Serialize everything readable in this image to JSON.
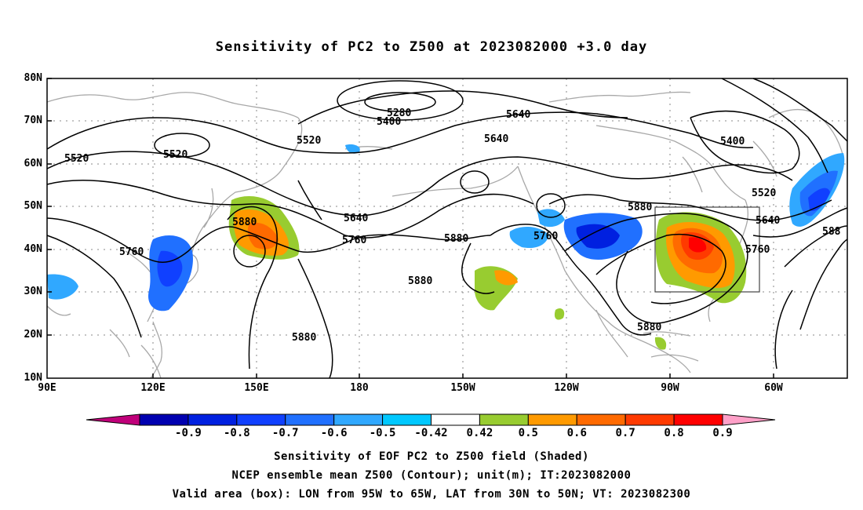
{
  "title": "Sensitivity of PC2 to Z500 at 2023082000 +3.0 day",
  "lat_labels": [
    "80N",
    "70N",
    "60N",
    "50N",
    "40N",
    "30N",
    "20N",
    "10N"
  ],
  "lon_labels": [
    "90E",
    "120E",
    "150E",
    "180",
    "150W",
    "120W",
    "90W",
    "60W"
  ],
  "contour_labels": [
    "5280",
    "5400",
    "5520",
    "5520",
    "5640",
    "5520",
    "5640",
    "5400",
    "5520",
    "5640",
    "5640",
    "5760",
    "5880",
    "5880",
    "5760",
    "5880",
    "5880",
    "5760",
    "5880",
    "5880",
    "5760",
    "5640",
    "588",
    "5760",
    "5880"
  ],
  "colorbar": {
    "labels": [
      "-0.9",
      "-0.8",
      "-0.7",
      "-0.6",
      "-0.5",
      "-0.42",
      "0.42",
      "0.5",
      "0.6",
      "0.7",
      "0.8",
      "0.9"
    ],
    "colors": [
      "#0000b0",
      "#0020e0",
      "#1040ff",
      "#2070ff",
      "#30a8ff",
      "#00c8ff",
      "#ffffff",
      "#98cc30",
      "#ff9a00",
      "#ff6a00",
      "#ff3a00",
      "#ff0000"
    ],
    "low_end_color": "#c0007a",
    "high_end_color": "#ffa0c8"
  },
  "footer": {
    "line1": "Sensitivity of EOF PC2 to Z500 field (Shaded)",
    "line2": "NCEP ensemble mean Z500 (Contour); unit(m); IT:2023082000",
    "line3": "Valid area (box): LON from 95W to 65W, LAT from 30N to 50N; VT: 2023082300"
  }
}
